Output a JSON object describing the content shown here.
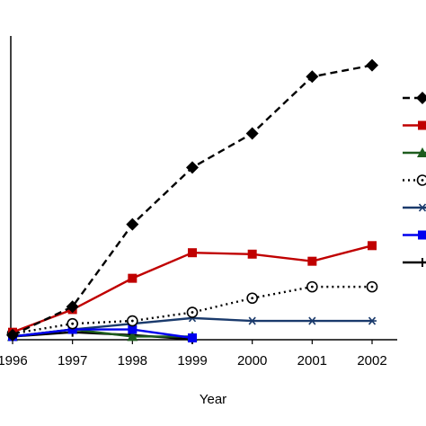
{
  "chart_data": {
    "type": "line",
    "title": "",
    "xlabel": "Year",
    "ylabel": "",
    "x": [
      1996,
      1997,
      1998,
      1999,
      2000,
      2001,
      2002
    ],
    "xtick_labels": [
      "1996",
      "1997",
      "1998",
      "1999",
      "2000",
      "2001",
      "2002"
    ],
    "xlim": [
      1996,
      2002
    ],
    "ylim": [
      0,
      100
    ],
    "grid": false,
    "legend_position": "right",
    "series": [
      {
        "key": "s1",
        "color": "#000000",
        "dash": "dashed",
        "marker": "diamond",
        "x": [
          1996,
          1997,
          1998,
          1999,
          2000,
          2001,
          2002
        ],
        "values": [
          1,
          11,
          40,
          60,
          72,
          92,
          96
        ]
      },
      {
        "key": "s2",
        "color": "#c00000",
        "dash": "solid",
        "marker": "square",
        "x": [
          1996,
          1997,
          1998,
          1999,
          2000,
          2001,
          2002
        ],
        "values": [
          2,
          10,
          21,
          30,
          29.5,
          27,
          32.5
        ]
      },
      {
        "key": "s3",
        "color": "#1e5c1e",
        "dash": "solid",
        "marker": "triangle",
        "x": [
          1996,
          1997,
          1998,
          1999
        ],
        "values": [
          0.5,
          3,
          0.5,
          0.5
        ]
      },
      {
        "key": "s4",
        "color": "#000000",
        "dash": "dotted",
        "marker": "circle",
        "x": [
          1996,
          1997,
          1998,
          1999,
          2000,
          2001,
          2002
        ],
        "values": [
          1.5,
          5,
          6,
          9,
          14,
          18,
          18
        ]
      },
      {
        "key": "s5",
        "color": "#1a3a6c",
        "dash": "solid",
        "marker": "star",
        "x": [
          1996,
          1997,
          1998,
          1999,
          2000,
          2001,
          2002
        ],
        "values": [
          0.5,
          3,
          5,
          7,
          6,
          6,
          6
        ]
      },
      {
        "key": "s6",
        "color": "#0000ee",
        "dash": "solid",
        "marker": "square",
        "x": [
          1996,
          1997,
          1998,
          1999
        ],
        "values": [
          0.5,
          3,
          3,
          0
        ]
      },
      {
        "key": "s7",
        "color": "#000000",
        "dash": "solid",
        "marker": "plus",
        "x": [
          1996,
          1997,
          1998,
          1999
        ],
        "values": [
          0.5,
          2,
          1,
          -0.5
        ]
      }
    ]
  }
}
